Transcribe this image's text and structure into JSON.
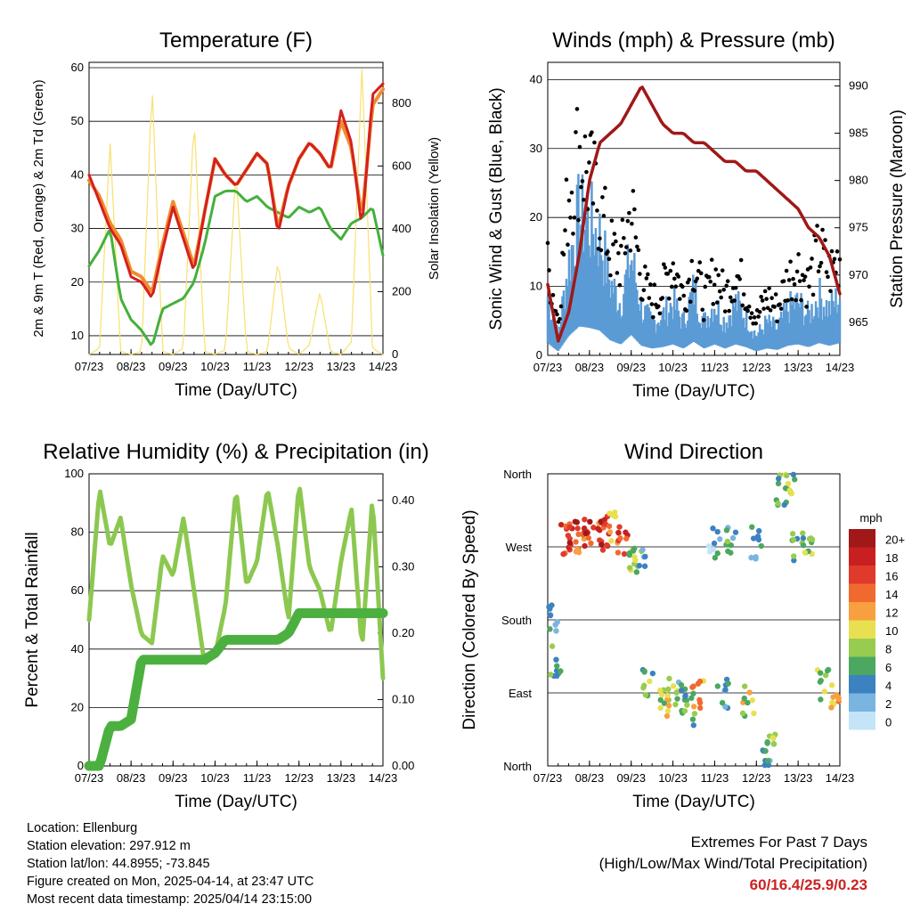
{
  "time_ticks": [
    "07/23",
    "08/23",
    "09/23",
    "10/23",
    "11/23",
    "12/23",
    "13/23",
    "14/23"
  ],
  "footer": {
    "location": "Location: Ellenburg",
    "elevation": "Station elevation: 297.912 m",
    "latlon": "Station lat/lon: 44.8955; -73.845",
    "created": "Figure created on Mon, 2025-04-14, at 23:47 UTC",
    "recent": "Most recent data timestamp: 2025/04/14 23:15:00"
  },
  "extremes": {
    "title": "Extremes For Past 7 Days",
    "subtitle": "(High/Low/Max Wind/Total Precipitation)",
    "value": "60/16.4/25.9/0.23"
  },
  "colors": {
    "t2m": "#d42020",
    "t9m": "#f08c2c",
    "td": "#44b03c",
    "solar": "#f8e070",
    "wind": "#5b9bd5",
    "gust": "#000000",
    "pressure": "#a01818",
    "rh": "#8cc850",
    "precip": "#4cb040"
  },
  "chart_data": [
    {
      "type": "line",
      "title": "Temperature (F)",
      "xlabel": "Time (Day/UTC)",
      "ylabel": "2m & 9m T (Red, Orange) & 2m Td (Green)",
      "y2label": "Solar Insolation (Yellow)",
      "ylim": [
        6.5,
        61
      ],
      "y2lim": [
        0,
        930
      ],
      "yticks": [
        10,
        20,
        30,
        40,
        50,
        60
      ],
      "y2ticks": [
        0,
        200,
        400,
        600,
        800
      ],
      "x": [
        0,
        0.25,
        0.5,
        0.75,
        1,
        1.25,
        1.5,
        1.75,
        2,
        2.25,
        2.5,
        2.75,
        3,
        3.25,
        3.5,
        3.75,
        4,
        4.25,
        4.5,
        4.75,
        5,
        5.25,
        5.5,
        5.75,
        6,
        6.25,
        6.5,
        6.75,
        7
      ],
      "series": [
        {
          "name": "2m T",
          "values": [
            40,
            35,
            30,
            27,
            21,
            20,
            17,
            26,
            34,
            28,
            22,
            33,
            43,
            40,
            38,
            41,
            44,
            42,
            29,
            38,
            43,
            46,
            44,
            41,
            52,
            46,
            30,
            55,
            57
          ]
        },
        {
          "name": "9m T",
          "values": [
            39,
            36,
            31,
            28,
            22,
            21,
            18,
            27,
            35,
            29,
            23,
            33,
            43,
            40,
            38,
            41,
            44,
            42,
            30,
            38,
            43,
            46,
            44,
            41,
            50,
            45,
            32,
            53,
            56
          ]
        },
        {
          "name": "2m Td",
          "values": [
            23,
            26,
            30,
            17,
            13,
            11,
            8,
            15,
            16,
            17,
            20,
            27,
            36,
            37,
            37,
            35,
            36,
            34,
            33,
            32,
            34,
            33,
            34,
            30,
            28,
            31,
            32,
            34,
            25
          ]
        },
        {
          "name": "Solar",
          "values": [
            0,
            20,
            680,
            10,
            0,
            10,
            860,
            10,
            0,
            20,
            760,
            10,
            0,
            15,
            590,
            10,
            0,
            10,
            300,
            20,
            0,
            30,
            200,
            10,
            0,
            40,
            920,
            20,
            0
          ]
        }
      ]
    },
    {
      "type": "scatter",
      "title": "Winds (mph) & Pressure (mb)",
      "xlabel": "Time (Day/UTC)",
      "ylabel": "Sonic Wind & Gust (Blue, Black)",
      "y2label": "Station Pressure (Maroon)",
      "ylim": [
        0,
        42.5
      ],
      "y2lim": [
        961.5,
        992.5
      ],
      "yticks": [
        0,
        10,
        20,
        30,
        40
      ],
      "y2ticks": [
        965,
        970,
        975,
        980,
        985,
        990
      ],
      "x": [
        0,
        0.25,
        0.5,
        0.75,
        1,
        1.25,
        1.5,
        1.75,
        2,
        2.25,
        2.5,
        2.75,
        3,
        3.25,
        3.5,
        3.75,
        4,
        4.25,
        4.5,
        4.75,
        5,
        5.25,
        5.5,
        5.75,
        6,
        6.25,
        6.5,
        6.75,
        7
      ],
      "series": [
        {
          "name": "Wind",
          "values": [
            9,
            3,
            14,
            21,
            20,
            18,
            11,
            8,
            15,
            7,
            5,
            6,
            8,
            5,
            10,
            5,
            8,
            5,
            8,
            6,
            3,
            5,
            4,
            7,
            8,
            6,
            9,
            7,
            9
          ]
        },
        {
          "name": "Gust",
          "values": [
            15,
            6,
            28,
            35,
            30,
            25,
            18,
            16,
            25,
            13,
            9,
            11,
            16,
            10,
            16,
            9,
            14,
            10,
            14,
            11,
            6,
            10,
            8,
            13,
            15,
            12,
            18,
            14,
            17
          ]
        },
        {
          "name": "Pressure",
          "values": [
            969,
            963,
            966,
            972,
            980,
            984,
            985,
            986,
            988,
            990,
            988,
            986,
            985,
            985,
            984,
            984,
            983,
            982,
            982,
            981,
            981,
            980,
            979,
            978,
            977,
            975,
            974,
            972,
            968
          ]
        }
      ]
    },
    {
      "type": "line",
      "title": "Relative Humidity (%) & Precipitation (in)",
      "xlabel": "Time (Day/UTC)",
      "ylabel": "Percent & Total Rainfall",
      "ylim": [
        0,
        100
      ],
      "y2lim": [
        0,
        0.44
      ],
      "yticks": [
        0,
        20,
        40,
        60,
        80,
        100
      ],
      "y2ticks": [
        "0.00",
        "0.10",
        "0.20",
        "0.30",
        "0.40"
      ],
      "x": [
        0,
        0.25,
        0.5,
        0.75,
        1,
        1.25,
        1.5,
        1.75,
        2,
        2.25,
        2.5,
        2.75,
        3,
        3.25,
        3.5,
        3.75,
        4,
        4.25,
        4.5,
        4.75,
        5,
        5.25,
        5.5,
        5.75,
        6,
        6.25,
        6.5,
        6.75,
        7
      ],
      "series": [
        {
          "name": "RH",
          "values": [
            50,
            95,
            75,
            85,
            62,
            45,
            42,
            72,
            65,
            85,
            60,
            35,
            38,
            55,
            95,
            62,
            70,
            95,
            75,
            50,
            97,
            68,
            60,
            45,
            70,
            88,
            40,
            92,
            30
          ]
        },
        {
          "name": "Precip",
          "values": [
            0,
            0,
            0.06,
            0.06,
            0.07,
            0.16,
            0.16,
            0.16,
            0.16,
            0.16,
            0.16,
            0.16,
            0.17,
            0.19,
            0.19,
            0.19,
            0.19,
            0.19,
            0.19,
            0.2,
            0.23,
            0.23,
            0.23,
            0.23,
            0.23,
            0.23,
            0.23,
            0.23,
            0.23
          ]
        }
      ]
    },
    {
      "type": "scatter",
      "title": "Wind Direction",
      "xlabel": "Time (Day/UTC)",
      "ylabel": "Direction (Colored By Speed)",
      "yticks": [
        "North",
        "West",
        "South",
        "East",
        "North"
      ],
      "legend_title": "mph",
      "legend_labels": [
        "20+",
        "18",
        "16",
        "14",
        "12",
        "10",
        "8",
        "6",
        "4",
        "2",
        "0"
      ],
      "legend_colors": [
        "#a01818",
        "#c82020",
        "#e03a2c",
        "#f06a30",
        "#f8a040",
        "#e8e050",
        "#98cc50",
        "#4ca860",
        "#3c82c0",
        "#7ab4e0",
        "#c4e4f8"
      ],
      "x": [
        0.1,
        0.2,
        0.4,
        0.6,
        0.8,
        1.0,
        1.2,
        1.4,
        1.6,
        1.8,
        2.0,
        2.2,
        2.4,
        2.8,
        3.0,
        3.2,
        3.4,
        3.6,
        4.0,
        4.2,
        4.4,
        4.8,
        5.0,
        5.2,
        5.4,
        5.6,
        5.8,
        6.0,
        6.2,
        6.6,
        6.9
      ],
      "series": [
        {
          "name": "direction",
          "values": [
            180,
            130,
            280,
            285,
            280,
            290,
            285,
            290,
            295,
            280,
            260,
            250,
            100,
            90,
            80,
            85,
            70,
            90,
            275,
            90,
            280,
            80,
            275,
            10,
            20,
            340,
            355,
            270,
            275,
            100,
            90
          ]
        },
        {
          "name": "speed",
          "values": [
            3,
            5,
            16,
            18,
            14,
            17,
            15,
            18,
            13,
            16,
            8,
            5,
            7,
            8,
            10,
            4,
            6,
            12,
            3,
            4,
            5,
            9,
            4,
            4,
            8,
            6,
            7,
            6,
            8,
            7,
            12
          ]
        }
      ]
    }
  ]
}
